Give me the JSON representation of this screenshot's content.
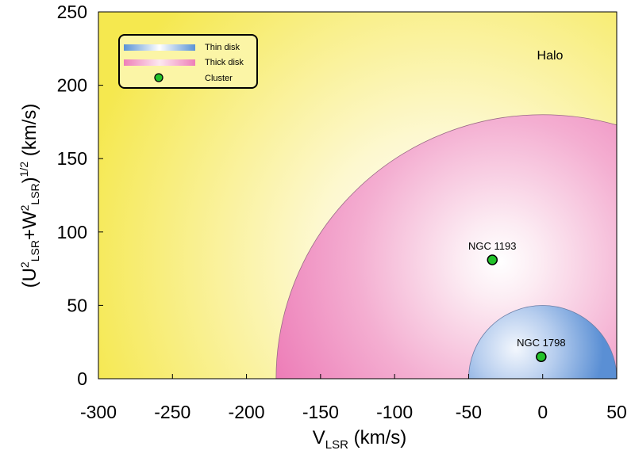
{
  "chart_data": {
    "type": "scatter",
    "title": "",
    "xlabel": {
      "main": "V",
      "sub": "LSR",
      "unit": " (km/s)"
    },
    "ylabel": {
      "parts": [
        "(U",
        "2",
        "LSR",
        "+W",
        "2",
        "LSR",
        ")",
        "1/2",
        " (km/s)"
      ]
    },
    "xlim": [
      -300,
      50
    ],
    "ylim": [
      0,
      250
    ],
    "xticks": [
      -300,
      -250,
      -200,
      -150,
      -100,
      -50,
      0,
      50
    ],
    "xtick_labels": [
      "-300",
      "-250",
      "-200",
      "-150",
      "-100",
      "-50",
      "0",
      "50"
    ],
    "yticks": [
      0,
      50,
      100,
      150,
      200,
      250
    ],
    "ytick_labels": [
      "0",
      "50",
      "100",
      "150",
      "200",
      "250"
    ],
    "grid": false,
    "legend": {
      "placement": "top-left",
      "entries": [
        "Thin disk",
        "Thick disk",
        "Cluster"
      ]
    },
    "regions": [
      {
        "name": "Halo",
        "label": "Halo",
        "color": "#f7ef5a",
        "center_color": "#ffffff"
      },
      {
        "name": "Thick disk",
        "center": [
          0,
          0
        ],
        "radius": 180,
        "color": "#ee7fb8"
      },
      {
        "name": "Thin disk",
        "center": [
          0,
          0
        ],
        "radius": 50,
        "color": "#5b93d6"
      }
    ],
    "series": [
      {
        "name": "Cluster",
        "color": "#22c22a",
        "points": [
          {
            "label": "NGC 1193",
            "x": -34,
            "y": 81
          },
          {
            "label": "NGC 1798",
            "x": -1,
            "y": 15
          }
        ]
      }
    ]
  }
}
